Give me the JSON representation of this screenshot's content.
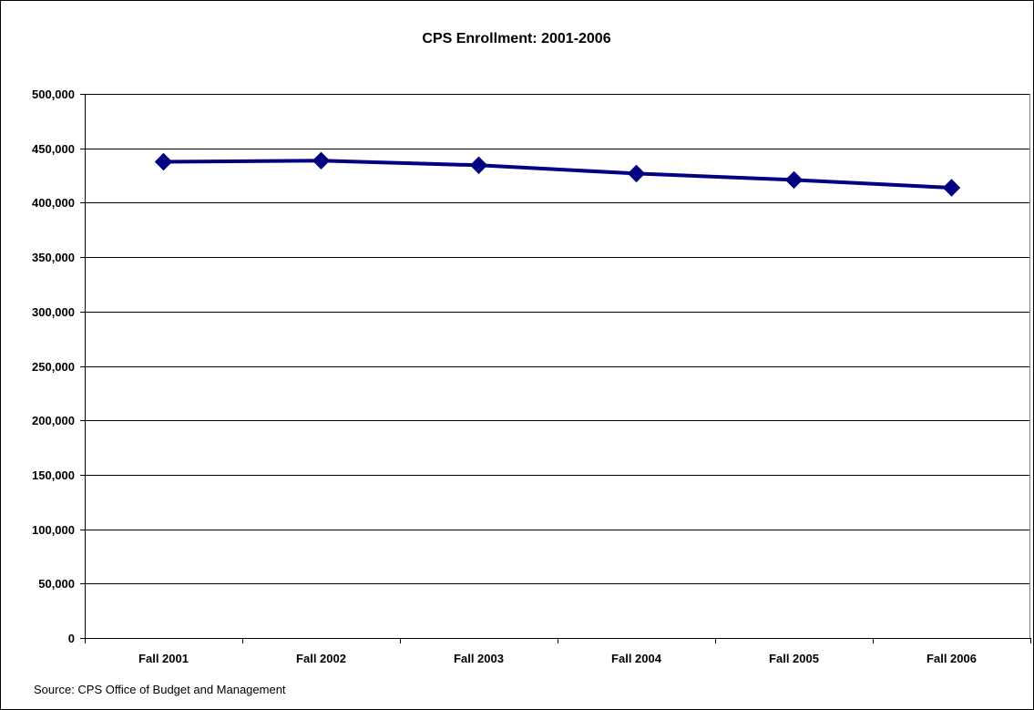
{
  "chart_data": {
    "type": "line",
    "title": "CPS Enrollment: 2001-2006",
    "xlabel": "",
    "ylabel": "",
    "categories": [
      "Fall 2001",
      "Fall 2002",
      "Fall 2003",
      "Fall 2004",
      "Fall 2005",
      "Fall 2006"
    ],
    "series": [
      {
        "values": [
          437600,
          438600,
          434400,
          426800,
          420900,
          413700
        ],
        "color": "#000080",
        "marker": "diamond"
      }
    ],
    "ylim": [
      0,
      500000
    ],
    "ytick_step": 50000,
    "ytick_labels": [
      "0",
      "50,000",
      "100,000",
      "150,000",
      "200,000",
      "250,000",
      "300,000",
      "350,000",
      "400,000",
      "450,000",
      "500,000"
    ],
    "grid": "horizontal",
    "legend": "none",
    "source": "Source:  CPS Office of Budget and Management"
  }
}
